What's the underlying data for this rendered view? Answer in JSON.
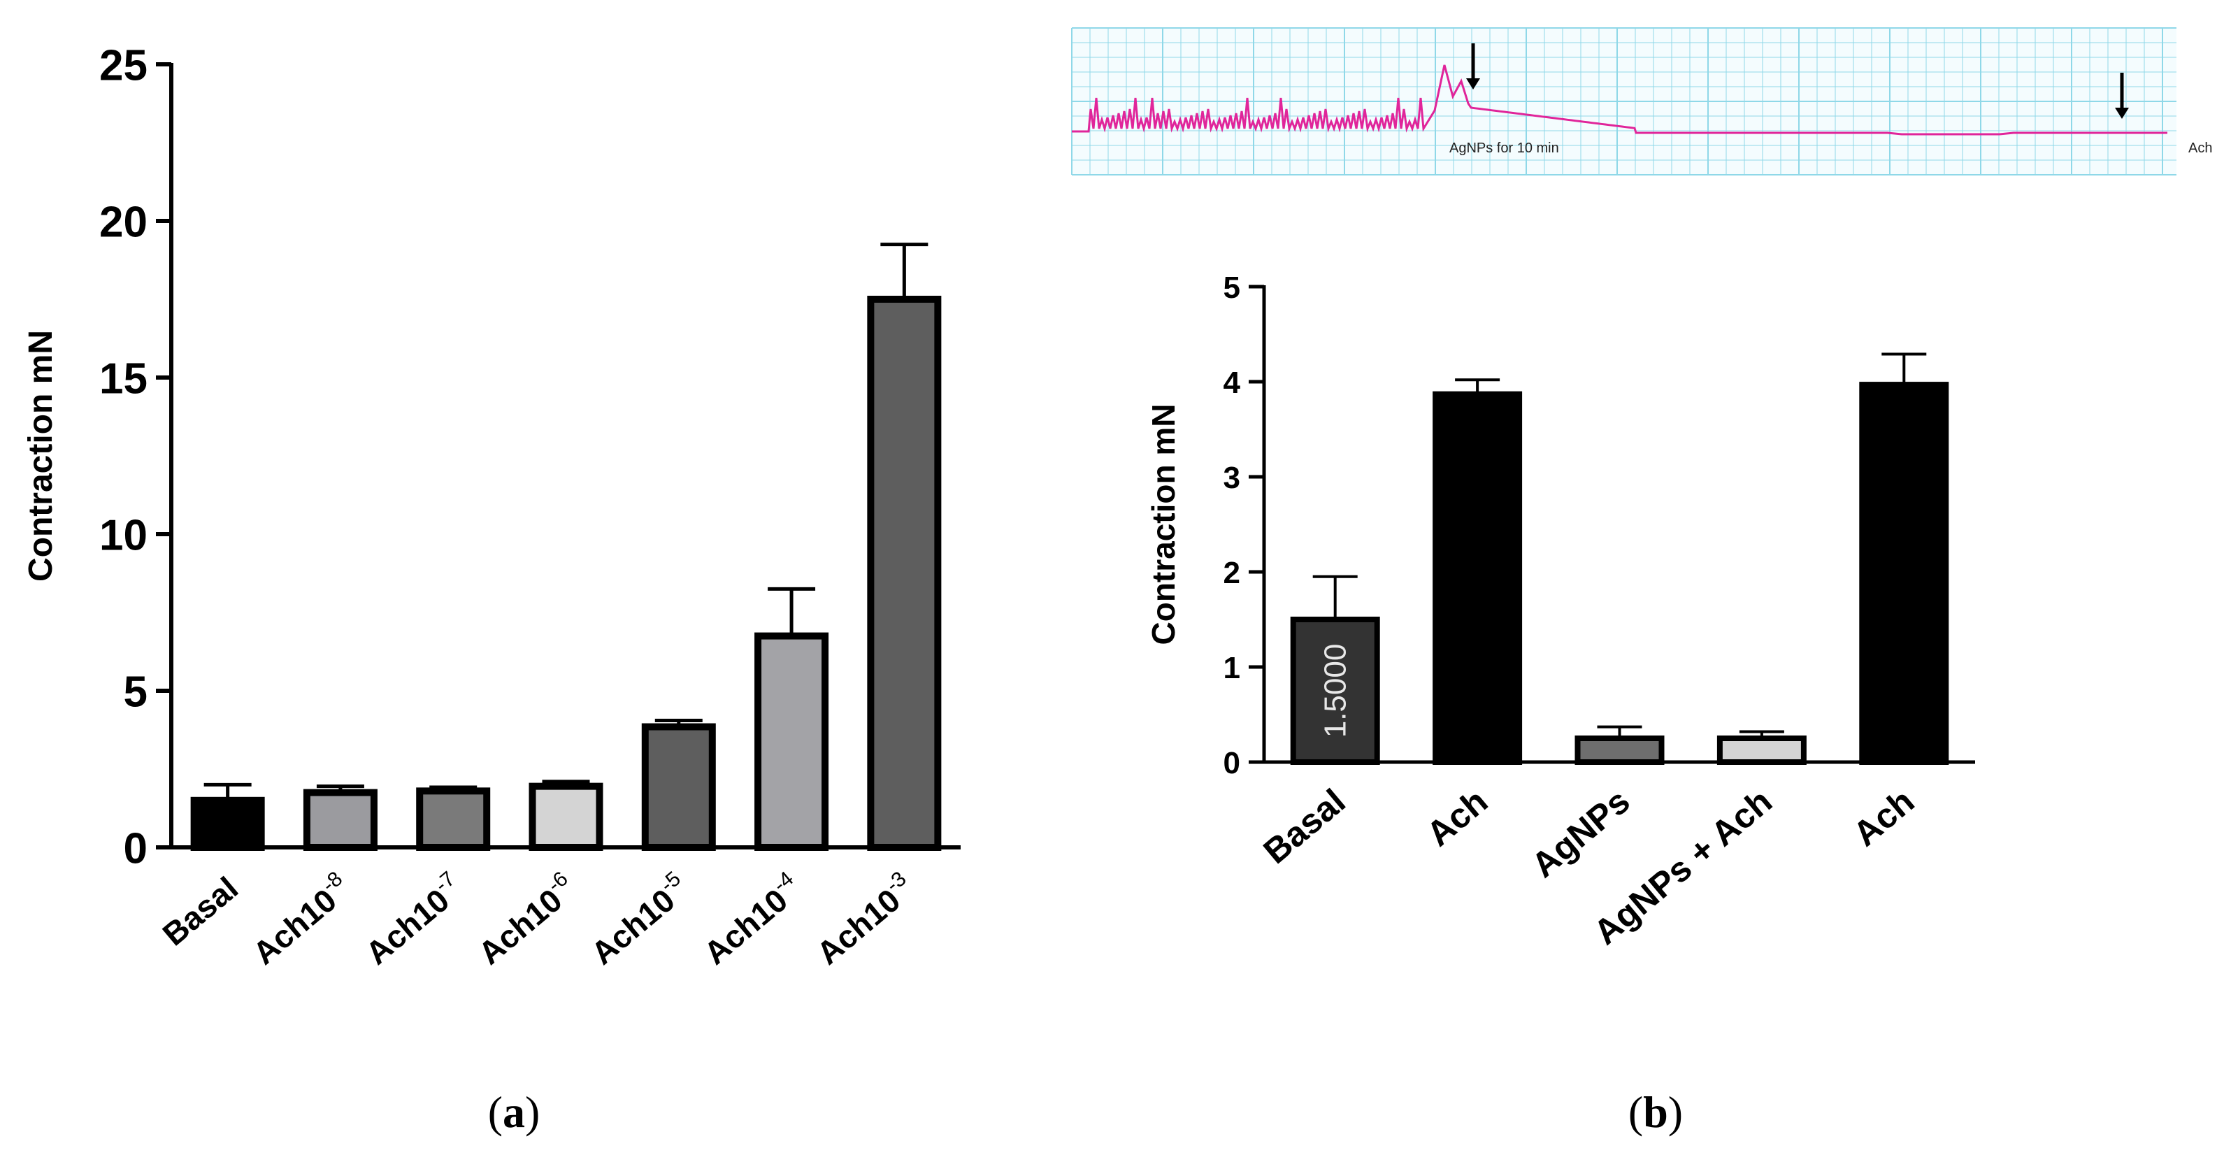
{
  "chart_data": [
    {
      "id": "a",
      "type": "bar",
      "panel_label": "a",
      "ylabel": "Contraction mN",
      "xlabel": "",
      "ylim": [
        0,
        25
      ],
      "yticks": [
        "0",
        "5",
        "10",
        "15",
        "20",
        "25"
      ],
      "categories": [
        {
          "base": "Basal",
          "sup": ""
        },
        {
          "base": "Ach10",
          "sup": "-8"
        },
        {
          "base": "Ach10",
          "sup": "-7"
        },
        {
          "base": "Ach10",
          "sup": "-6"
        },
        {
          "base": "Ach10",
          "sup": "-5"
        },
        {
          "base": "Ach10",
          "sup": "-4"
        },
        {
          "base": "Ach10",
          "sup": "-3"
        }
      ],
      "values": [
        1.5,
        1.75,
        1.8,
        1.95,
        3.85,
        6.75,
        17.5
      ],
      "errors": [
        0.5,
        0.2,
        0.12,
        0.15,
        0.2,
        1.5,
        1.75
      ],
      "bar_colors": [
        "#000000",
        "#9b9b9f",
        "#7a7a7a",
        "#d4d4d4",
        "#5e5e5e",
        "#a3a3a7",
        "#5e5e5e"
      ]
    },
    {
      "id": "b",
      "type": "bar",
      "panel_label": "b",
      "ylabel": "Contraction mN",
      "xlabel": "",
      "ylim": [
        0,
        5
      ],
      "yticks": [
        "0",
        "1",
        "2",
        "3",
        "4",
        "5"
      ],
      "categories": [
        {
          "base": "Basal",
          "sup": ""
        },
        {
          "base": "Ach",
          "sup": ""
        },
        {
          "base": "AgNPs",
          "sup": ""
        },
        {
          "base": "AgNPs + Ach",
          "sup": ""
        },
        {
          "base": "Ach",
          "sup": ""
        }
      ],
      "values": [
        1.5,
        3.87,
        0.25,
        0.25,
        3.97
      ],
      "errors": [
        0.45,
        0.15,
        0.12,
        0.07,
        0.32
      ],
      "bar_colors": [
        "#333333",
        "#000000",
        "#6e6e6e",
        "#d4d4d4",
        "#000000"
      ],
      "bar_annotation": "1.5000"
    }
  ],
  "trace": {
    "label_agnps": "AgNPs for 10 min",
    "label_ach": "Ach",
    "trace_color": "#e0259a",
    "grid_color": "#8fd8e8"
  },
  "panels": {
    "a_label": "a",
    "b_label": "b"
  }
}
